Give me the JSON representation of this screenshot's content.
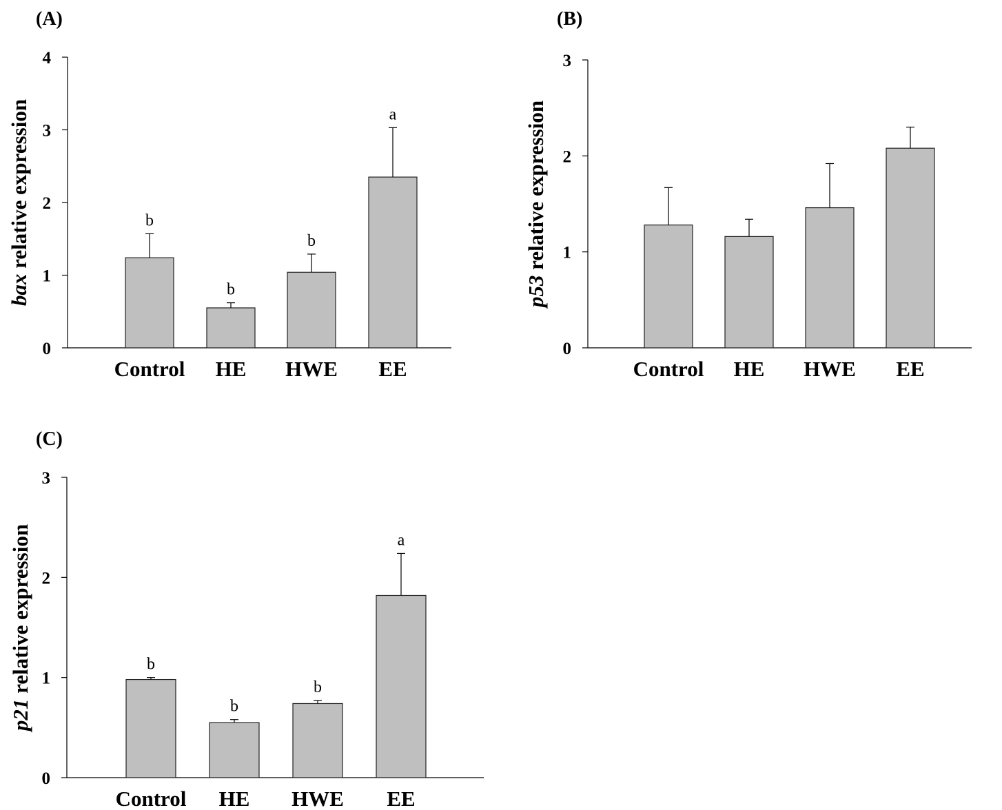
{
  "chart_data": [
    {
      "panel_label": "(A)",
      "type": "bar",
      "ylabel_italic": "bax",
      "ylabel_rest": " relative expression",
      "categories": [
        "Control",
        "HE",
        "HWE",
        "EE"
      ],
      "values": [
        1.24,
        0.55,
        1.04,
        2.35
      ],
      "errors": [
        0.33,
        0.07,
        0.25,
        0.68
      ],
      "significance": [
        "b",
        "b",
        "b",
        "a"
      ],
      "ylim": [
        0,
        4
      ],
      "yticks": [
        "0",
        "1",
        "2",
        "3",
        "4"
      ],
      "bar_color": "#bfbfbf"
    },
    {
      "panel_label": "(B)",
      "type": "bar",
      "ylabel_italic": "p53",
      "ylabel_rest": " relative expression",
      "categories": [
        "Control",
        "HE",
        "HWE",
        "EE"
      ],
      "values": [
        1.28,
        1.16,
        1.46,
        2.08
      ],
      "errors": [
        0.39,
        0.18,
        0.46,
        0.22
      ],
      "significance": [
        "",
        "",
        "",
        ""
      ],
      "ylim": [
        0,
        3
      ],
      "yticks": [
        "0",
        "1",
        "2",
        "3"
      ],
      "bar_color": "#bfbfbf"
    },
    {
      "panel_label": "(C)",
      "type": "bar",
      "ylabel_italic": "p21",
      "ylabel_rest": " relative expression",
      "categories": [
        "Control",
        "HE",
        "HWE",
        "EE"
      ],
      "values": [
        0.98,
        0.55,
        0.74,
        1.82
      ],
      "errors": [
        0.02,
        0.03,
        0.03,
        0.42
      ],
      "significance": [
        "b",
        "b",
        "b",
        "a"
      ],
      "ylim": [
        0,
        3
      ],
      "yticks": [
        "0",
        "1",
        "2",
        "3"
      ],
      "bar_color": "#bfbfbf"
    }
  ]
}
